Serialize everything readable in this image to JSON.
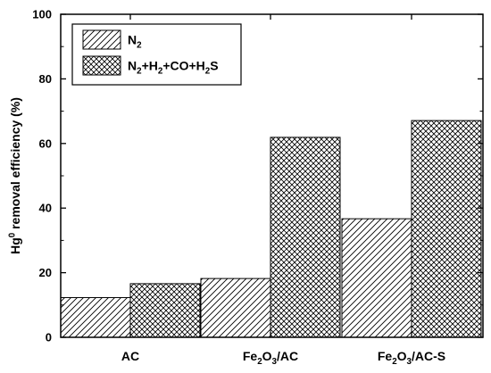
{
  "chart_data": {
    "type": "bar",
    "categories": [
      {
        "base": "AC",
        "parts": [
          [
            "AC",
            ""
          ]
        ]
      },
      {
        "base": "Fe2O3/AC",
        "parts": [
          [
            "Fe",
            ""
          ],
          [
            "2",
            "sub"
          ],
          [
            "O",
            ""
          ],
          [
            "3",
            "sub"
          ],
          [
            "/AC",
            ""
          ]
        ]
      },
      {
        "base": "Fe2O3/AC-S",
        "parts": [
          [
            "Fe",
            ""
          ],
          [
            "2",
            "sub"
          ],
          [
            "O",
            ""
          ],
          [
            "3",
            "sub"
          ],
          [
            "/AC-S",
            ""
          ]
        ]
      }
    ],
    "series": [
      {
        "name": "N2",
        "name_parts": [
          [
            "N",
            ""
          ],
          [
            "2",
            "sub"
          ]
        ],
        "pattern": "diagonal-hatch",
        "values": [
          12.3,
          18.2,
          36.7
        ]
      },
      {
        "name": "N2+H2+CO+H2S",
        "name_parts": [
          [
            "N",
            ""
          ],
          [
            "2",
            "sub"
          ],
          [
            "+H",
            ""
          ],
          [
            "2",
            "sub"
          ],
          [
            "+CO+H",
            ""
          ],
          [
            "2",
            "sub"
          ],
          [
            "S",
            ""
          ]
        ],
        "pattern": "cross-hatch",
        "values": [
          16.6,
          61.9,
          67.1
        ]
      }
    ],
    "ylabel": "Hg0 removal efficiency (%)",
    "ylabel_parts": [
      [
        "Hg",
        ""
      ],
      [
        "0",
        "sup"
      ],
      [
        " removal efficiency (%)",
        ""
      ]
    ],
    "xlabel": "",
    "ylim": [
      0,
      100
    ],
    "yticks": [
      0,
      20,
      40,
      60,
      80,
      100
    ],
    "legend_position": "top-left",
    "grid": false,
    "bar_color": "#ffffff",
    "stroke_color": "#000000"
  }
}
